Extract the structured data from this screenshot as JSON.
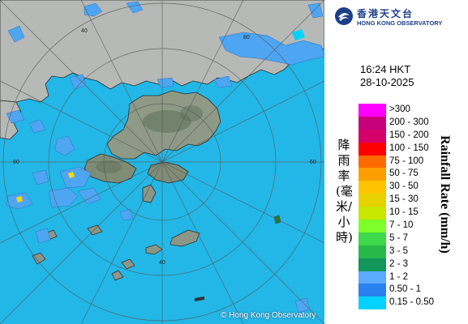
{
  "map": {
    "copyright": "© Hong Kong Observatory",
    "range_ring_labels": [
      "40",
      "60",
      "80"
    ],
    "colors": {
      "sea": "#22b7e6",
      "land": "#b9bcb9",
      "rain_light": "#4ea6f2",
      "hills": "#5d7058"
    }
  },
  "panel": {
    "logo": {
      "chinese": "香港天文台",
      "english": "HONG KONG OBSERVATORY",
      "icon": "hong-kong-observatory-logo-icon"
    },
    "time": "16:24 HKT",
    "date": "28-10-2025",
    "axis_title_chinese": "降雨率(毫米/小時)",
    "axis_title_english": "Rainfall Rate (mm/h)",
    "legend": [
      {
        "label": ">300",
        "color": "#ff00ff"
      },
      {
        "label": "200 - 300",
        "color": "#c8007a"
      },
      {
        "label": "150 - 200",
        "color": "#d6006a"
      },
      {
        "label": "100 - 150",
        "color": "#ff0000"
      },
      {
        "label": "75 - 100",
        "color": "#ff6a00"
      },
      {
        "label": "50 - 75",
        "color": "#ff9e00"
      },
      {
        "label": "30 - 50",
        "color": "#ffc400"
      },
      {
        "label": "15 - 30",
        "color": "#e6d200"
      },
      {
        "label": "10 - 15",
        "color": "#c8e600"
      },
      {
        "label": "7 - 10",
        "color": "#7dff2a"
      },
      {
        "label": "5 - 7",
        "color": "#3ed84a"
      },
      {
        "label": "3 - 5",
        "color": "#27b84a"
      },
      {
        "label": "2 - 3",
        "color": "#12965a"
      },
      {
        "label": "1 - 2",
        "color": "#5aaaff"
      },
      {
        "label": "0.50 - 1",
        "color": "#2a82f0"
      },
      {
        "label": "0.15 - 0.50",
        "color": "#00d2ff"
      }
    ]
  }
}
